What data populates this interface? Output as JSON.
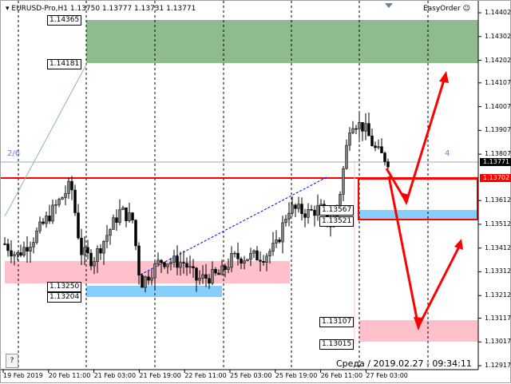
{
  "window": {
    "title": "EURUSD-Pro,H1  1.13750 1.13777 1.13731 1.13771",
    "expert_label": "EasyOrder",
    "expert_icon": "smiley-icon",
    "help_button": "?",
    "clock": "Среда  /  2019.02.27  -  09:34:11"
  },
  "price_axis": {
    "ticks": [
      "1.14402",
      "1.14302",
      "1.14202",
      "1.14107",
      "1.14007",
      "1.13907",
      "1.13807",
      "1.13612",
      "1.13512",
      "1.13412",
      "1.13312",
      "1.13212",
      "1.13117",
      "1.13017",
      "1.12917"
    ],
    "current_price": "1.13771",
    "line_price": "1.13702"
  },
  "time_axis": {
    "ticks": [
      "19 Feb 2019",
      "20 Feb 11:00",
      "21 Feb 03:00",
      "21 Feb 19:00",
      "22 Feb 11:00",
      "25 Feb 03:00",
      "25 Feb 19:00",
      "26 Feb 11:00",
      "27 Feb 03:00"
    ]
  },
  "zone_labels": {
    "green_top": "1.14365",
    "green_bottom": "1.14181",
    "pink_left_bottom": "1.13250",
    "blue_left_bottom": "1.13204",
    "blue_right_top": "1.13567",
    "blue_right_bottom": "1.13521",
    "pink_right_top": "1.13107",
    "pink_right_bottom": "1.13015"
  },
  "annotations": {
    "wave_left": "2/6",
    "wave_right": "4"
  },
  "colors": {
    "green_zone": "#8fbc8f",
    "pink_zone": "#ffc0cb",
    "blue_zone": "#87cefa",
    "red": "#ff0000",
    "bull_candle": "#808080",
    "bear_candle": "#000000"
  }
}
